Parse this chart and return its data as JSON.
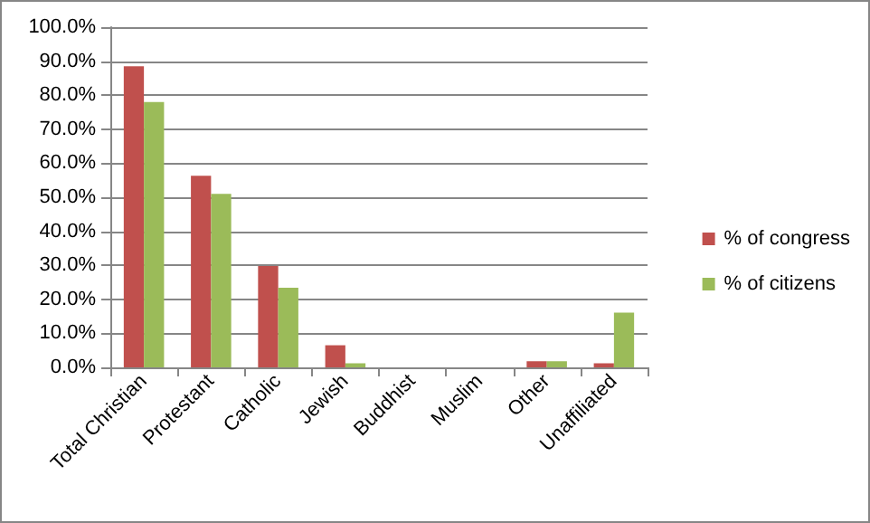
{
  "chart_data": {
    "type": "bar",
    "categories": [
      "Total Christian",
      "Protestant",
      "Catholic",
      "Jewish",
      "Buddhist",
      "Muslim",
      "Other",
      "Unaffiliated"
    ],
    "series": [
      {
        "name": "% of congress",
        "color": "#c0504d",
        "values": [
          88.5,
          56.3,
          29.8,
          6.5,
          0,
          0,
          1.8,
          1.2
        ]
      },
      {
        "name": "% of citizens",
        "color": "#9bbb59",
        "values": [
          78,
          51,
          23.4,
          1.2,
          0,
          0,
          1.8,
          16.1
        ]
      }
    ],
    "ylim": [
      0,
      100
    ],
    "yticks": [
      {
        "value": 0,
        "label": "0.0%"
      },
      {
        "value": 10,
        "label": "10.0%"
      },
      {
        "value": 20,
        "label": "20.0%"
      },
      {
        "value": 30,
        "label": "30.0%"
      },
      {
        "value": 40,
        "label": "40.0%"
      },
      {
        "value": 50,
        "label": "50.0%"
      },
      {
        "value": 60,
        "label": "60.0%"
      },
      {
        "value": 70,
        "label": "70.0%"
      },
      {
        "value": 80,
        "label": "80.0%"
      },
      {
        "value": 90,
        "label": "90.0%"
      },
      {
        "value": 100,
        "label": "100.0%"
      }
    ],
    "grid": "y",
    "legend": "right"
  }
}
